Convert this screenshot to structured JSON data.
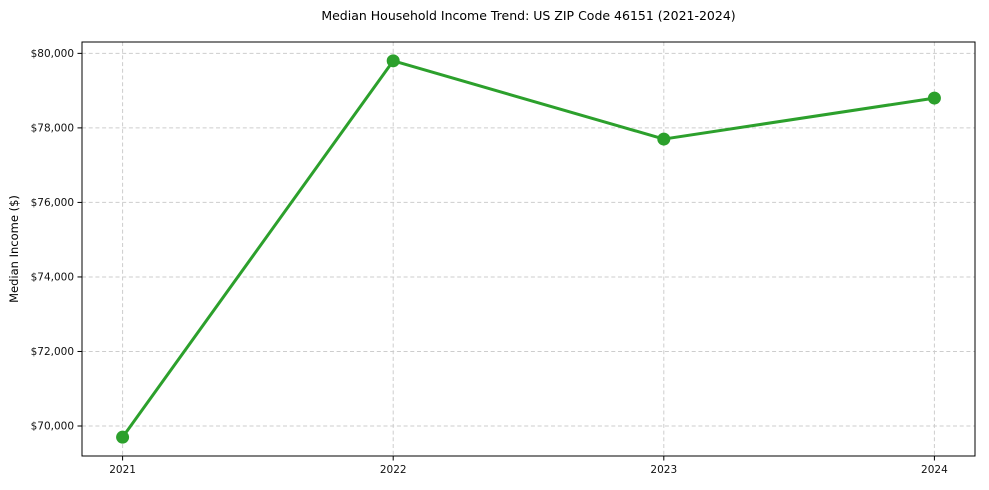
{
  "chart_data": {
    "type": "line",
    "title": "Median Household Income Trend: US ZIP Code 46151 (2021-2024)",
    "xlabel": "",
    "ylabel": "Median Income ($)",
    "x": [
      2021,
      2022,
      2023,
      2024
    ],
    "x_tick_labels": [
      "2021",
      "2022",
      "2023",
      "2024"
    ],
    "series": [
      {
        "name": "Median Household Income",
        "values": [
          69700,
          79800,
          77700,
          78800
        ],
        "color": "#2ca02c",
        "marker": "circle"
      }
    ],
    "y_ticks": [
      70000,
      72000,
      74000,
      76000,
      78000,
      80000
    ],
    "y_tick_labels": [
      "$70,000",
      "$72,000",
      "$74,000",
      "$76,000",
      "$78,000",
      "$80,000"
    ],
    "ylim": [
      69195,
      80305
    ],
    "xlim": [
      2020.85,
      2024.15
    ],
    "grid": true,
    "grid_style": "dashed",
    "legend": false,
    "colors": {
      "line": "#2ca02c",
      "grid": "#cdcdcd",
      "spine": "#000000",
      "background": "#ffffff",
      "text": "#000000"
    }
  }
}
